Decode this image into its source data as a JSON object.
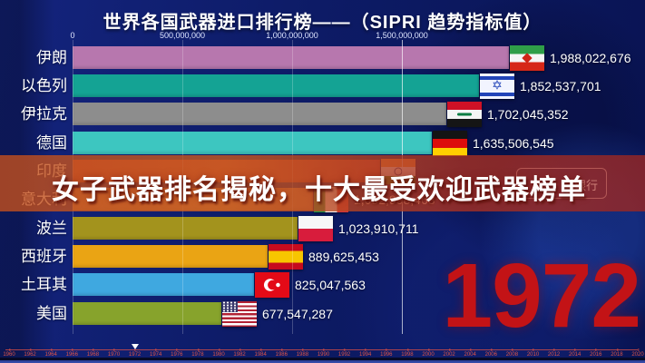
{
  "title": "世界各国武器进口排行榜——（SIPRI 趋势指标值）",
  "year_display": "1972",
  "overlay_banner": {
    "headline": "女子武器排名揭秘，十大最受欢迎武器榜单",
    "watermark_text": "银行"
  },
  "chart_data": {
    "type": "bar",
    "orientation": "horizontal-race",
    "title": "世界各国武器进口排行榜（SIPRI 趋势指标值）",
    "year": 1972,
    "x_axis": {
      "ticks": [
        {
          "value": 0,
          "label": "0"
        },
        {
          "value": 500000000,
          "label": "500,000,000"
        },
        {
          "value": 1000000000,
          "label": "1,000,000,000"
        },
        {
          "value": 1500000000,
          "label": "1,500,000,000"
        }
      ],
      "max": 2100000000,
      "grid": true
    },
    "rows": [
      {
        "rank": 1,
        "country": "伊朗",
        "flag": "iran",
        "value": 1988022676,
        "value_label": "1,988,022,676",
        "bar_color": "#b777ae"
      },
      {
        "rank": 2,
        "country": "以色列",
        "flag": "israel",
        "value": 1852537701,
        "value_label": "1,852,537,701",
        "bar_color": "#14a394"
      },
      {
        "rank": 3,
        "country": "伊拉克",
        "flag": "iraq",
        "value": 1702045352,
        "value_label": "1,702,045,352",
        "bar_color": "#8d8d8d"
      },
      {
        "rank": 4,
        "country": "德国",
        "flag": "germany",
        "value": 1635506545,
        "value_label": "1,635,506,545",
        "bar_color": "#3dc6c0"
      },
      {
        "rank": 5,
        "country": "印度",
        "flag": "india",
        "value": 1400000000,
        "value_label": "",
        "value_estimated": true,
        "hidden_by_banner": true,
        "bar_color": "#c2473a"
      },
      {
        "rank": 6,
        "country": "意大利",
        "flag": "italy",
        "value": 1092998463,
        "value_label": "1,092,998,463",
        "bar_color": "#c8854d"
      },
      {
        "rank": 7,
        "country": "波兰",
        "flag": "poland",
        "value": 1023910711,
        "value_label": "1,023,910,711",
        "bar_color": "#a3931d"
      },
      {
        "rank": 8,
        "country": "西班牙",
        "flag": "spain",
        "value": 889625453,
        "value_label": "889,625,453",
        "bar_color": "#eaa414"
      },
      {
        "rank": 9,
        "country": "土耳其",
        "flag": "turkey",
        "value": 825047563,
        "value_label": "825,047,563",
        "bar_color": "#3fa8e0"
      },
      {
        "rank": 10,
        "country": "美国",
        "flag": "usa",
        "value": 677547287,
        "value_label": "677,547,287",
        "bar_color": "#87a32c"
      }
    ]
  },
  "timeline": {
    "start": 1960,
    "end": 2020,
    "step": 2,
    "current_year": 1972,
    "years": [
      1960,
      1962,
      1964,
      1966,
      1968,
      1970,
      1972,
      1974,
      1976,
      1978,
      1980,
      1982,
      1984,
      1986,
      1988,
      1990,
      1992,
      1994,
      1996,
      1998,
      2000,
      2002,
      2004,
      2006,
      2008,
      2010,
      2012,
      2014,
      2016,
      2018,
      2020
    ]
  }
}
